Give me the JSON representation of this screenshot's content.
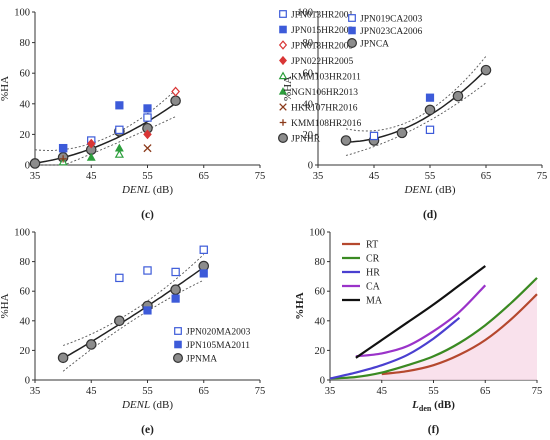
{
  "chart_data": [
    {
      "id": "c",
      "panel_label": "(c)",
      "type": "scatter",
      "xlabel": "DENL (dB)",
      "ylabel": "%HA",
      "xlim": [
        35,
        75
      ],
      "ylim": [
        0,
        100
      ],
      "xticks": [
        35,
        45,
        55,
        65,
        75
      ],
      "yticks": [
        0,
        20,
        40,
        60,
        80,
        100
      ],
      "grid": false,
      "legend_position": "right",
      "series": [
        {
          "name": "JPN013HR2001",
          "marker": "open-square",
          "color": "#3d5bd9",
          "x": [
            40,
            45,
            50,
            55
          ],
          "y": [
            11,
            16,
            23,
            31
          ]
        },
        {
          "name": "JPN015HR2003",
          "marker": "filled-square",
          "color": "#3d5bd9",
          "x": [
            40,
            50,
            55
          ],
          "y": [
            11,
            39,
            37
          ]
        },
        {
          "name": "JPN018HR2003",
          "marker": "open-diamond",
          "color": "#d93636",
          "x": [
            60
          ],
          "y": [
            48
          ]
        },
        {
          "name": "JPN022HR2005",
          "marker": "filled-diamond",
          "color": "#d93636",
          "x": [
            45,
            55
          ],
          "y": [
            14,
            20
          ]
        },
        {
          "name": "KMM103HR2011",
          "marker": "open-triangle",
          "color": "#2c9e3c",
          "x": [
            40,
            50
          ],
          "y": [
            2,
            7
          ]
        },
        {
          "name": "NGN106HR2013",
          "marker": "filled-triangle",
          "color": "#2c9e3c",
          "x": [
            45,
            50
          ],
          "y": [
            5,
            11
          ]
        },
        {
          "name": "HKR107HR2016",
          "marker": "x",
          "color": "#8b3a1a",
          "x": [
            55
          ],
          "y": [
            11
          ]
        },
        {
          "name": "KMM108HR2016",
          "marker": "plus",
          "color": "#8b3a1a",
          "x": [
            40
          ],
          "y": [
            4
          ]
        },
        {
          "name": "JPNHR",
          "marker": "gray-circle",
          "color": "#8c8c8c",
          "x": [
            35,
            40,
            45,
            50,
            55,
            60
          ],
          "y": [
            1,
            5,
            10,
            22,
            24,
            42
          ],
          "fit": true
        }
      ]
    },
    {
      "id": "d",
      "panel_label": "(d)",
      "type": "scatter",
      "xlabel": "DENL (dB)",
      "ylabel": "%HA",
      "xlim": [
        35,
        75
      ],
      "ylim": [
        0,
        100
      ],
      "xticks": [
        35,
        45,
        55,
        65,
        75
      ],
      "yticks": [
        0,
        20,
        40,
        60,
        80,
        100
      ],
      "grid": false,
      "legend_position": "top-left",
      "series": [
        {
          "name": "JPN019CA2003",
          "marker": "open-square",
          "color": "#3d5bd9",
          "x": [
            45,
            55
          ],
          "y": [
            19,
            23
          ]
        },
        {
          "name": "JPN023CA2006",
          "marker": "filled-square",
          "color": "#3d5bd9",
          "x": [
            55
          ],
          "y": [
            44
          ]
        },
        {
          "name": "JPNCA",
          "marker": "gray-circle",
          "color": "#8c8c8c",
          "x": [
            40,
            45,
            50,
            55,
            60,
            65
          ],
          "y": [
            16,
            16,
            21,
            36,
            45,
            62
          ],
          "fit": true
        }
      ]
    },
    {
      "id": "e",
      "panel_label": "(e)",
      "type": "scatter",
      "xlabel": "DENL (dB)",
      "ylabel": "%HA",
      "xlim": [
        35,
        75
      ],
      "ylim": [
        0,
        100
      ],
      "xticks": [
        35,
        45,
        55,
        65,
        75
      ],
      "yticks": [
        0,
        20,
        40,
        60,
        80,
        100
      ],
      "grid": false,
      "legend_position": "bottom-right",
      "series": [
        {
          "name": "JPN020MA2003",
          "marker": "open-square",
          "color": "#3d5bd9",
          "x": [
            50,
            55,
            60,
            65
          ],
          "y": [
            69,
            74,
            73,
            88
          ]
        },
        {
          "name": "JPN105MA2011",
          "marker": "filled-square",
          "color": "#3d5bd9",
          "x": [
            55,
            60,
            65
          ],
          "y": [
            47,
            55,
            72
          ]
        },
        {
          "name": "JPNMA",
          "marker": "gray-circle",
          "color": "#8c8c8c",
          "x": [
            40,
            45,
            50,
            55,
            60,
            65
          ],
          "y": [
            15,
            24,
            40,
            50,
            61,
            77
          ],
          "fit": true
        }
      ]
    },
    {
      "id": "f",
      "panel_label": "(f)",
      "type": "line",
      "xlabel": "L",
      "xlabel_sub": "den",
      "xlabel_unit": " (dB)",
      "ylabel": "%HA",
      "xlim": [
        35,
        75
      ],
      "ylim": [
        0,
        100
      ],
      "xticks": [
        35,
        45,
        55,
        65,
        75
      ],
      "yticks": [
        0,
        20,
        40,
        60,
        80,
        100
      ],
      "grid": false,
      "legend_position": "top-left",
      "series": [
        {
          "name": "RT",
          "color": "#b5482e",
          "x": [
            45,
            50,
            55,
            60,
            65,
            70,
            75
          ],
          "y": [
            4,
            6,
            10,
            17,
            27,
            41,
            58
          ]
        },
        {
          "name": "CR",
          "color": "#3a8a22",
          "x": [
            35,
            40,
            45,
            50,
            55,
            60,
            65,
            70,
            75
          ],
          "y": [
            1,
            2,
            5,
            10,
            16,
            25,
            37,
            52,
            69
          ]
        },
        {
          "name": "HR",
          "color": "#4a3fd0",
          "x": [
            35,
            40,
            45,
            50,
            55,
            60
          ],
          "y": [
            1,
            5,
            10,
            17,
            28,
            42
          ]
        },
        {
          "name": "CA",
          "color": "#9a33c9",
          "x": [
            40,
            45,
            50,
            55,
            60,
            65
          ],
          "y": [
            16,
            18,
            23,
            33,
            46,
            64
          ]
        },
        {
          "name": "MA",
          "color": "#111111",
          "x": [
            40,
            45,
            50,
            55,
            60,
            65
          ],
          "y": [
            15,
            27,
            39,
            51,
            64,
            77
          ]
        }
      ]
    }
  ]
}
